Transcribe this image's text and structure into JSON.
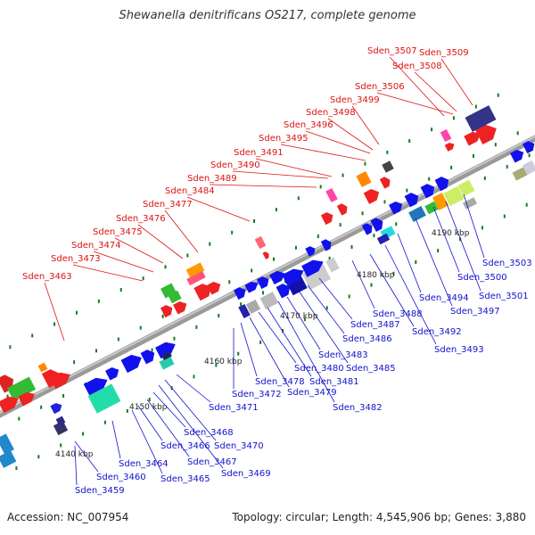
{
  "title": "Shewanella denitrificans OS217, complete genome",
  "footer": {
    "accession": "Accession: NC_007954",
    "summary": "Topology: circular; Length: 4,545,906 bp; Genes: 3,880"
  },
  "colors": {
    "top_labels": "#dd1111",
    "bottom_labels": "#1111cc",
    "backbone": "#9a9a9a"
  },
  "scale_labels": [
    "4140 kbp",
    "4150 kbp",
    "4160 kbp",
    "4170 kbp",
    "4180 kbp",
    "4190 kbp"
  ],
  "top_gene_labels": [
    "Sden_3463",
    "Sden_3473",
    "Sden_3474",
    "Sden_3475",
    "Sden_3476",
    "Sden_3477",
    "Sden_3484",
    "Sden_3489",
    "Sden_3490",
    "Sden_3491",
    "Sden_3495",
    "Sden_3496",
    "Sden_3498",
    "Sden_3499",
    "Sden_3506",
    "Sden_3508",
    "Sden_3507",
    "Sden_3509"
  ],
  "bottom_gene_labels": [
    "Sden_3459",
    "Sden_3460",
    "Sden_3464",
    "Sden_3465",
    "Sden_3466",
    "Sden_3467",
    "Sden_3468",
    "Sden_3469",
    "Sden_3470",
    "Sden_3471",
    "Sden_3472",
    "Sden_3478",
    "Sden_3479",
    "Sden_3480",
    "Sden_3481",
    "Sden_3482",
    "Sden_3483",
    "Sden_3485",
    "Sden_3486",
    "Sden_3487",
    "Sden_3488",
    "Sden_3492",
    "Sden_3493",
    "Sden_3494",
    "Sden_3497",
    "Sden_3500",
    "Sden_3501",
    "Sden_3503"
  ]
}
